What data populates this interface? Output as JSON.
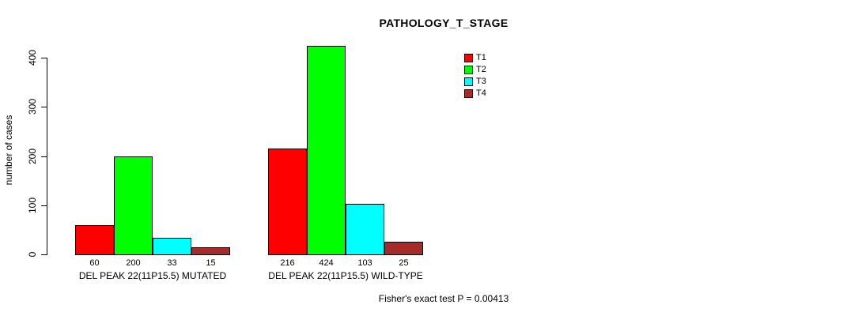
{
  "chart_data": {
    "type": "bar",
    "title": "PATHOLOGY_T_STAGE",
    "ylabel": "number of cases",
    "xlabel": "",
    "ylim": [
      0,
      400
    ],
    "yticks": [
      0,
      100,
      200,
      300,
      400
    ],
    "grid": false,
    "legend_position": "top-right-inside",
    "categories": [
      "DEL PEAK 22(11P15.5) MUTATED",
      "DEL PEAK 22(11P15.5) WILD-TYPE"
    ],
    "series": [
      {
        "name": "T1",
        "color": "#ff0000",
        "values": [
          60,
          216
        ]
      },
      {
        "name": "T2",
        "color": "#00ff00",
        "values": [
          200,
          424
        ]
      },
      {
        "name": "T3",
        "color": "#00ffff",
        "values": [
          33,
          103
        ]
      },
      {
        "name": "T4",
        "color": "#a52a2a",
        "values": [
          15,
          25
        ]
      }
    ],
    "bar_value_labels": [
      [
        "60",
        "200",
        "33",
        "15"
      ],
      [
        "216",
        "424",
        "103",
        "25"
      ]
    ],
    "annotation": "Fisher's exact test P = 0.00413"
  }
}
